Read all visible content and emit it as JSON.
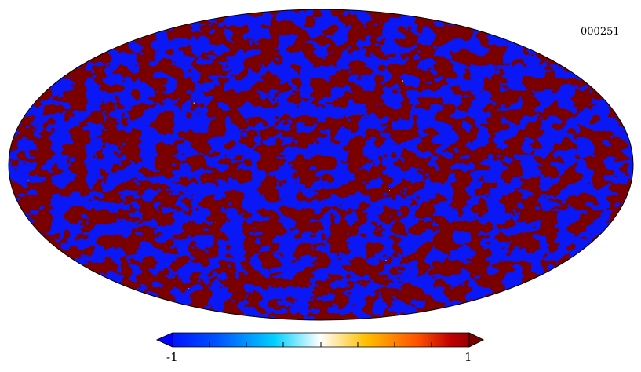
{
  "map": {
    "id_label": "000251",
    "projection": "mollweide",
    "description_colors": {
      "low": "#0a18f5",
      "high": "#7a0000"
    }
  },
  "colorbar": {
    "min_label": "-1",
    "max_label": "1",
    "stops": [
      "#0000ff",
      "#0060ff",
      "#00c8ff",
      "#ffffff",
      "#ffc000",
      "#ff6000",
      "#d00000",
      "#800000"
    ]
  }
}
